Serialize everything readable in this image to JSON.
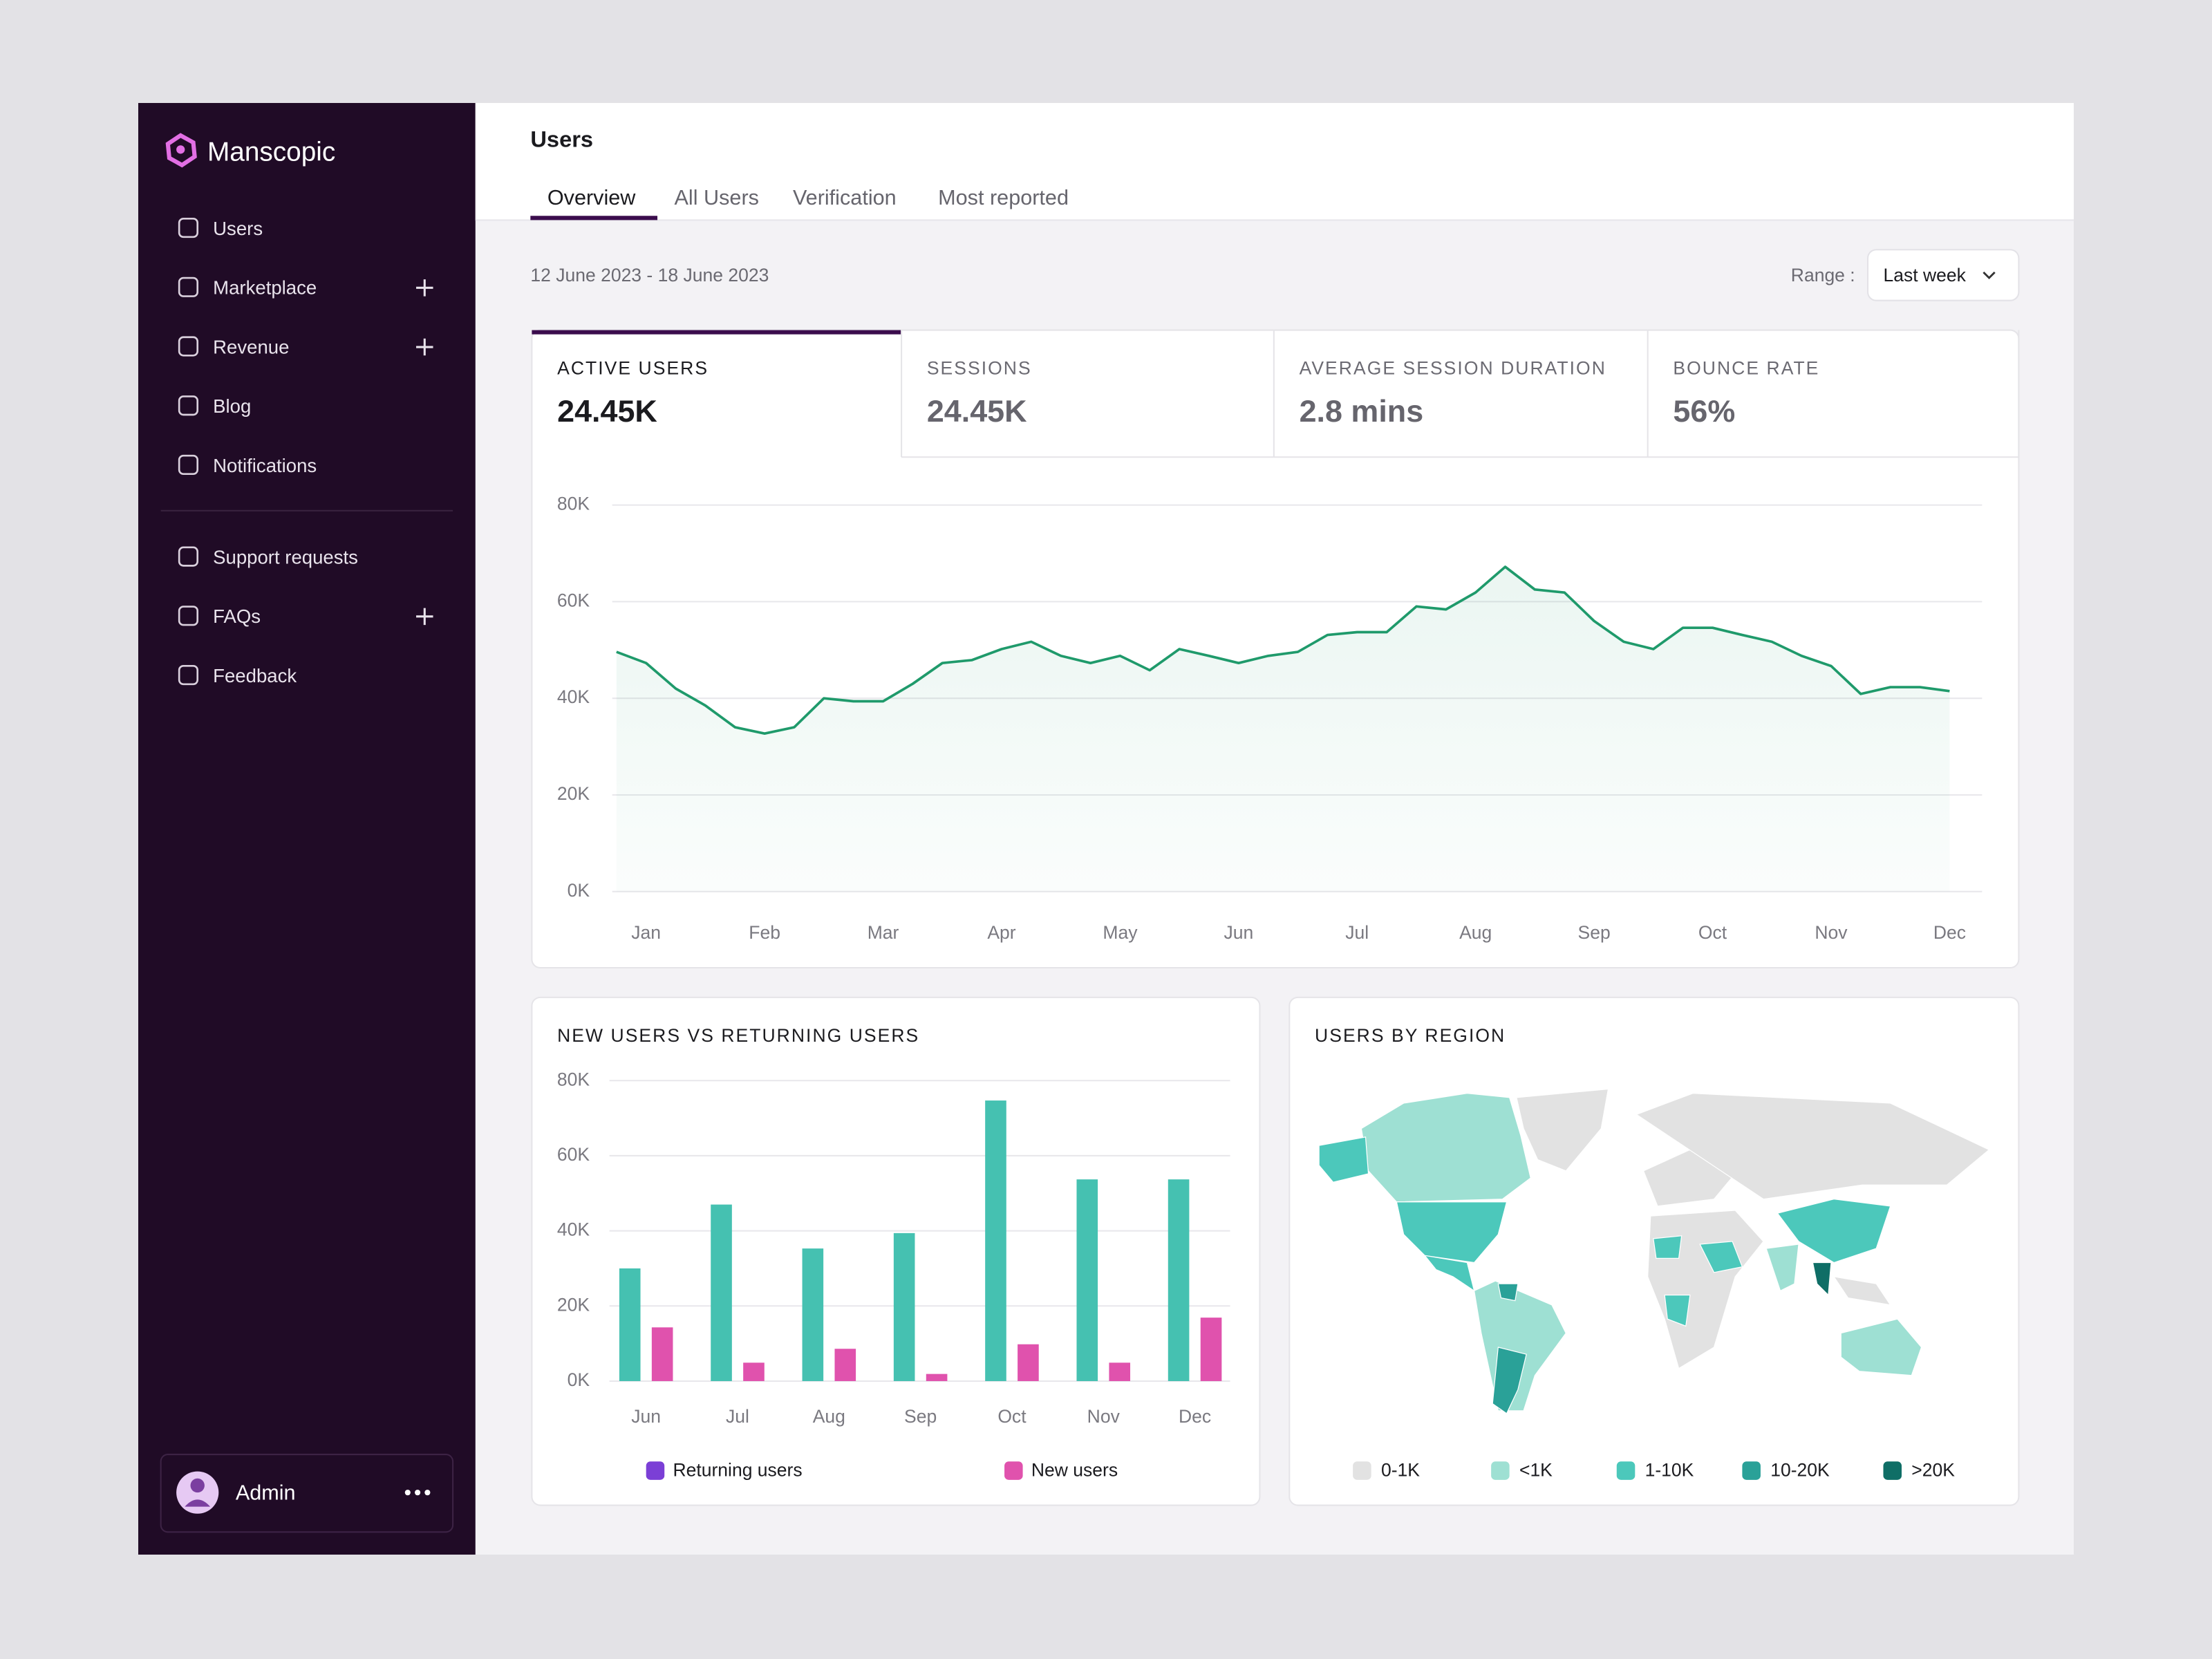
{
  "sidebar": {
    "brand": "Manscopic",
    "nav": [
      {
        "label": "Users",
        "expandable": false
      },
      {
        "label": "Marketplace",
        "expandable": true
      },
      {
        "label": "Revenue",
        "expandable": true
      },
      {
        "label": "Blog",
        "expandable": false
      },
      {
        "label": "Notifications",
        "expandable": false
      }
    ],
    "support": [
      {
        "label": "Support requests",
        "expandable": false
      },
      {
        "label": "FAQs",
        "expandable": true
      },
      {
        "label": "Feedback",
        "expandable": false
      }
    ],
    "user": "Admin"
  },
  "header": {
    "title": "Users",
    "tabs": [
      "Overview",
      "All Users",
      "Verification",
      "Most reported"
    ]
  },
  "toolbar": {
    "date_range": "12 June 2023 - 18 June 2023",
    "range_label": "Range :",
    "range_value": "Last week"
  },
  "kpis": [
    {
      "label": "ACTIVE USERS",
      "value": "24.45K"
    },
    {
      "label": "SESSIONS",
      "value": "24.45K"
    },
    {
      "label": "AVERAGE SESSION DURATION",
      "value": "2.8 mins"
    },
    {
      "label": "BOUNCE RATE",
      "value": "56%"
    }
  ],
  "chart_data": [
    {
      "type": "line",
      "categories": [
        null,
        "Jan",
        null,
        null,
        null,
        "Feb",
        null,
        null,
        null,
        "Mar",
        null,
        null,
        null,
        "Apr",
        null,
        null,
        null,
        "May",
        null,
        null,
        null,
        "Jun",
        null,
        null,
        null,
        "Jul",
        null,
        null,
        null,
        "Aug",
        null,
        null,
        null,
        "Sep",
        null,
        null,
        null,
        "Oct",
        null,
        null,
        null,
        "Nov",
        null,
        null,
        null,
        "Dec"
      ],
      "series": [
        {
          "name": "Active users",
          "color": "#1f9a6b",
          "values": [
            49.6,
            47.3,
            42,
            38.5,
            34,
            32.7,
            34,
            40,
            39.4,
            39.4,
            43,
            47.3,
            47.9,
            50.2,
            51.7,
            48.8,
            47.3,
            48.8,
            45.8,
            50.2,
            48.8,
            47.3,
            48.8,
            49.6,
            53.1,
            53.7,
            53.7,
            59,
            58.4,
            61.9,
            67.2,
            62.5,
            61.9,
            56,
            51.7,
            50.2,
            54.6,
            54.6,
            53.1,
            51.7,
            48.8,
            46.7,
            40.9,
            42.3,
            42.3,
            41.5
          ]
        }
      ],
      "ylim": [
        0,
        80
      ],
      "yticks": [
        {
          "value": 0,
          "label": "0K"
        },
        {
          "value": 20,
          "label": "20K"
        },
        {
          "value": 40,
          "label": "40K"
        },
        {
          "value": 60,
          "label": "60K"
        },
        {
          "value": 80,
          "label": "80K"
        }
      ],
      "grid": true
    },
    {
      "type": "bar",
      "title": "NEW USERS VS RETURNING USERS",
      "categories": [
        "Jun",
        "Jul",
        "Aug",
        "Sep",
        "Oct",
        "Nov",
        "Dec"
      ],
      "series": [
        {
          "name": "Returning users",
          "color": "#45c1b1",
          "legend_color": "#7b3fd6",
          "values": [
            30,
            47,
            35.3,
            39.4,
            74.7,
            53.7,
            53.7
          ]
        },
        {
          "name": "New users",
          "color": "#e052ad",
          "legend_color": "#e052ad",
          "values": [
            14.3,
            4.9,
            8.6,
            1.9,
            9.8,
            4.9,
            16.9
          ]
        }
      ],
      "ylim": [
        0,
        80
      ],
      "yticks": [
        {
          "value": 0,
          "label": "0K"
        },
        {
          "value": 20,
          "label": "20K"
        },
        {
          "value": 40,
          "label": "40K"
        },
        {
          "value": 60,
          "label": "60K"
        },
        {
          "value": 80,
          "label": "80K"
        }
      ],
      "grid": true
    }
  ],
  "map": {
    "title": "USERS BY REGION",
    "legend": [
      {
        "label": "0-1K",
        "color": "#e2e2e2"
      },
      {
        "label": "<1K",
        "color": "#9ee0d3"
      },
      {
        "label": "1-10K",
        "color": "#4cc8bb"
      },
      {
        "label": "10-20K",
        "color": "#2aa198"
      },
      {
        "label": ">20K",
        "color": "#0f6e66"
      }
    ]
  }
}
